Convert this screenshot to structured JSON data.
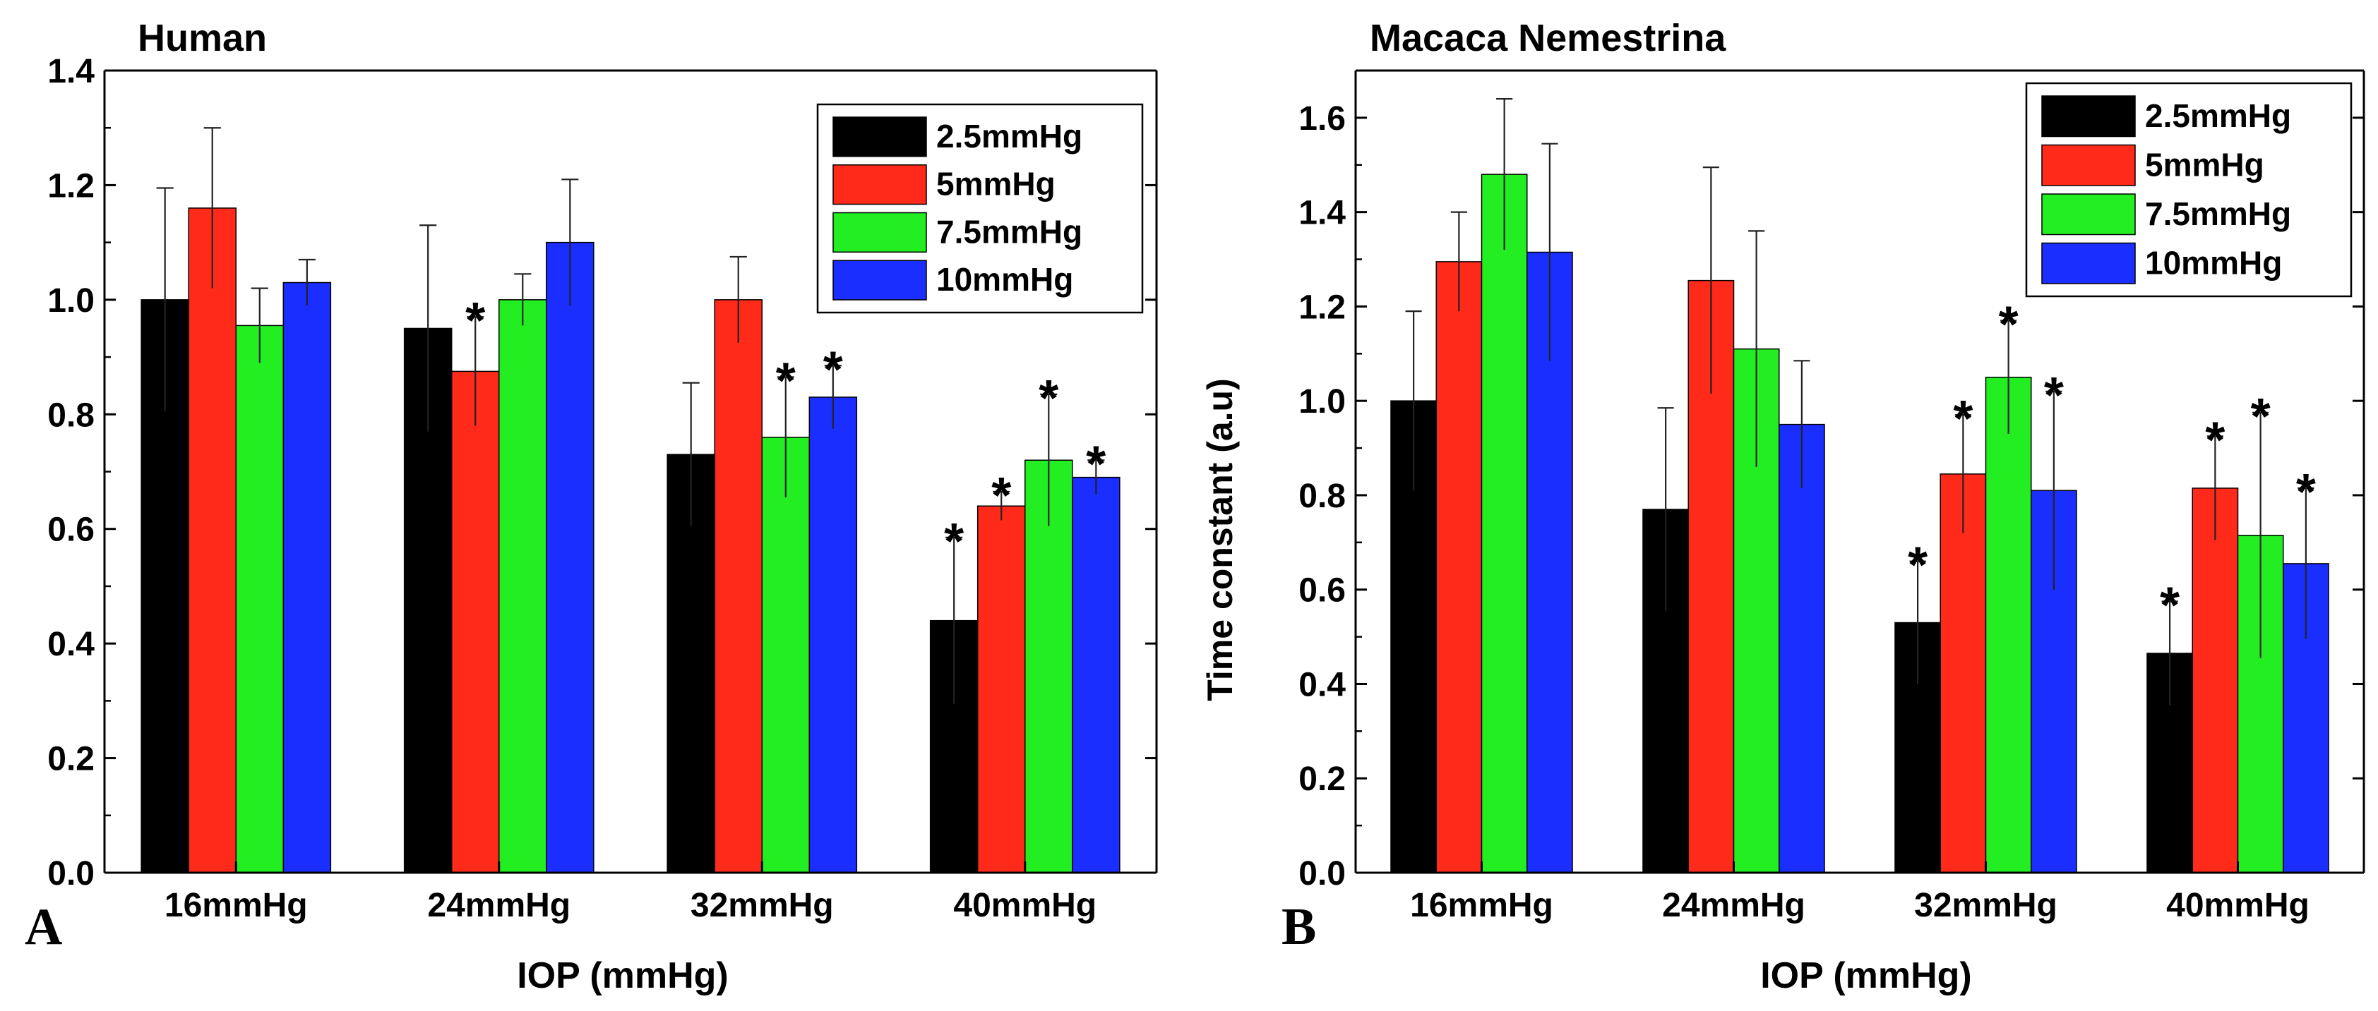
{
  "figure": {
    "colors": {
      "series": [
        "#000000",
        "#ff2a1a",
        "#22ee22",
        "#1a2eff"
      ],
      "axis": "#000000",
      "background": "#ffffff"
    }
  },
  "chart_data": [
    {
      "type": "bar",
      "panel_label": "A",
      "title": "Human",
      "xlabel": "IOP (mmHg)",
      "ylabel": "",
      "ylim": [
        0,
        1.4
      ],
      "yticks": [
        "0.0",
        "0.2",
        "0.4",
        "0.6",
        "0.8",
        "1.0",
        "1.2",
        "1.4"
      ],
      "grid": false,
      "legend_position": "top-right",
      "categories": [
        "16mmHg",
        "24mmHg",
        "32mmHg",
        "40mmHg"
      ],
      "series": [
        {
          "name": "2.5mmHg",
          "values": [
            1.0,
            0.95,
            0.73,
            0.44
          ],
          "errors": [
            0.195,
            0.18,
            0.125,
            0.145
          ],
          "significant": [
            false,
            false,
            false,
            true
          ]
        },
        {
          "name": "5mmHg",
          "values": [
            1.16,
            0.875,
            1.0,
            0.64
          ],
          "errors": [
            0.14,
            0.095,
            0.075,
            0.025
          ],
          "significant": [
            false,
            true,
            false,
            true
          ]
        },
        {
          "name": "7.5mmHg",
          "values": [
            0.955,
            1.0,
            0.76,
            0.72
          ],
          "errors": [
            0.065,
            0.045,
            0.105,
            0.115
          ],
          "significant": [
            false,
            false,
            true,
            true
          ]
        },
        {
          "name": "10mmHg",
          "values": [
            1.03,
            1.1,
            0.83,
            0.69
          ],
          "errors": [
            0.04,
            0.11,
            0.055,
            0.03
          ],
          "significant": [
            false,
            false,
            true,
            true
          ]
        }
      ],
      "annotation_symbol": "*"
    },
    {
      "type": "bar",
      "panel_label": "B",
      "title": "Macaca Nemestrina",
      "xlabel": "IOP (mmHg)",
      "ylabel": "Time constant (a.u)",
      "ylim": [
        0,
        1.7
      ],
      "yticks": [
        "0.0",
        "0.2",
        "0.4",
        "0.6",
        "0.8",
        "1.0",
        "1.2",
        "1.4",
        "1.6"
      ],
      "grid": false,
      "legend_position": "top-right",
      "categories": [
        "16mmHg",
        "24mmHg",
        "32mmHg",
        "40mmHg"
      ],
      "series": [
        {
          "name": "2.5mmHg",
          "values": [
            1.0,
            0.77,
            0.53,
            0.465
          ],
          "errors": [
            0.19,
            0.215,
            0.13,
            0.11
          ],
          "significant": [
            false,
            false,
            true,
            true
          ]
        },
        {
          "name": "5mmHg",
          "values": [
            1.295,
            1.255,
            0.845,
            0.815
          ],
          "errors": [
            0.105,
            0.24,
            0.125,
            0.11
          ],
          "significant": [
            false,
            false,
            true,
            true
          ]
        },
        {
          "name": "7.5mmHg",
          "values": [
            1.48,
            1.11,
            1.05,
            0.715
          ],
          "errors": [
            0.16,
            0.25,
            0.12,
            0.26
          ],
          "significant": [
            false,
            false,
            true,
            true
          ]
        },
        {
          "name": "10mmHg",
          "values": [
            1.315,
            0.95,
            0.81,
            0.655
          ],
          "errors": [
            0.23,
            0.135,
            0.21,
            0.16
          ],
          "significant": [
            false,
            false,
            true,
            true
          ]
        }
      ],
      "annotation_symbol": "*"
    }
  ]
}
